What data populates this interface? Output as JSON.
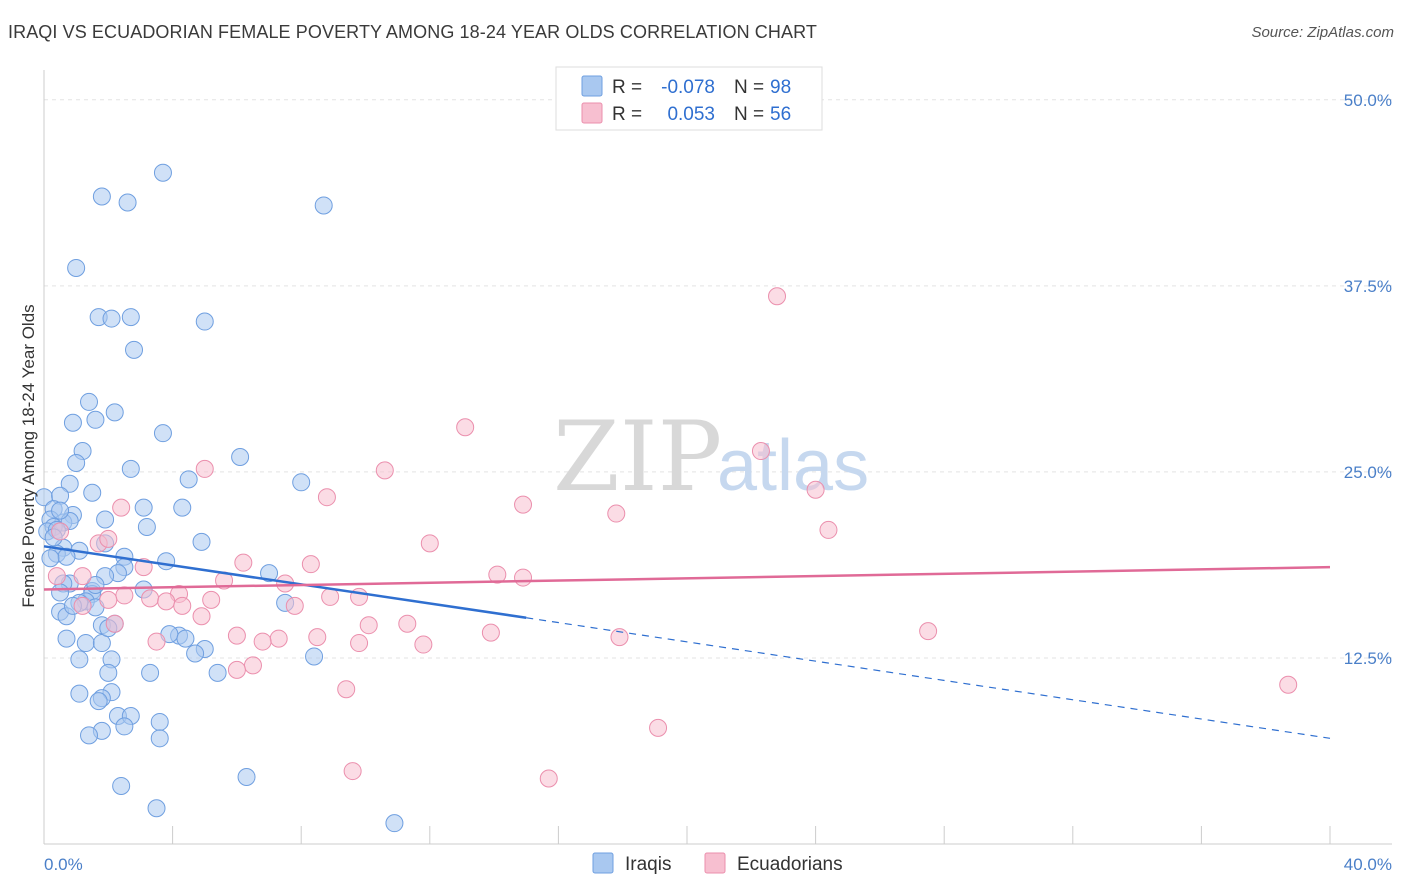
{
  "title": "IRAQI VS ECUADORIAN FEMALE POVERTY AMONG 18-24 YEAR OLDS CORRELATION CHART",
  "source": "Source: ZipAtlas.com",
  "watermark": {
    "zip": "ZIP",
    "atlas": "atlas"
  },
  "colors": {
    "iraqis_fill": "#a9c8f0",
    "iraqis_stroke": "#6f9fe0",
    "iraqis_line": "#2f6fd0",
    "ecuadorians_fill": "#f7bfd0",
    "ecuadorians_stroke": "#eb8fad",
    "ecuadorians_line": "#e06a97",
    "grid": "#e3e3e3",
    "tick_label": "#4a7fc8"
  },
  "legend": {
    "r_label": "R =",
    "n_label": "N =",
    "rows": [
      {
        "r": "-0.078",
        "n": "98"
      },
      {
        "r": "0.053",
        "n": "56"
      }
    ]
  },
  "chart_data": {
    "type": "scatter",
    "xlabel": "",
    "ylabel": "Female Poverty Among 18-24 Year Olds",
    "xlim": [
      0,
      40
    ],
    "ylim": [
      0,
      52
    ],
    "x_tick_labels": [
      "0.0%",
      "40.0%"
    ],
    "y_ticks": [
      12.5,
      25.0,
      37.5,
      50.0
    ],
    "y_tick_labels": [
      "12.5%",
      "25.0%",
      "37.5%",
      "50.0%"
    ],
    "grid": true,
    "legend_position": "top-center",
    "series": [
      {
        "name": "Iraqis",
        "points": [
          [
            3.7,
            45.1
          ],
          [
            1.8,
            43.5
          ],
          [
            2.6,
            43.1
          ],
          [
            8.7,
            42.9
          ],
          [
            1.0,
            38.7
          ],
          [
            1.7,
            35.4
          ],
          [
            2.1,
            35.3
          ],
          [
            2.7,
            35.4
          ],
          [
            5.0,
            35.1
          ],
          [
            2.8,
            33.2
          ],
          [
            1.4,
            29.7
          ],
          [
            2.2,
            29.0
          ],
          [
            1.6,
            28.5
          ],
          [
            0.9,
            28.3
          ],
          [
            3.7,
            27.6
          ],
          [
            1.2,
            26.4
          ],
          [
            6.1,
            26.0
          ],
          [
            1.0,
            25.6
          ],
          [
            2.7,
            25.2
          ],
          [
            4.5,
            24.5
          ],
          [
            8.0,
            24.3
          ],
          [
            0.8,
            24.2
          ],
          [
            1.5,
            23.6
          ],
          [
            0.0,
            23.3
          ],
          [
            0.5,
            23.4
          ],
          [
            0.3,
            22.5
          ],
          [
            3.1,
            22.6
          ],
          [
            4.3,
            22.6
          ],
          [
            0.9,
            22.1
          ],
          [
            1.9,
            21.8
          ],
          [
            0.2,
            21.8
          ],
          [
            0.6,
            21.6
          ],
          [
            0.8,
            21.7
          ],
          [
            0.3,
            21.3
          ],
          [
            0.1,
            21.0
          ],
          [
            0.4,
            21.1
          ],
          [
            4.9,
            20.3
          ],
          [
            1.9,
            20.2
          ],
          [
            0.6,
            19.9
          ],
          [
            1.1,
            19.7
          ],
          [
            0.4,
            19.5
          ],
          [
            0.7,
            19.3
          ],
          [
            0.2,
            19.2
          ],
          [
            2.5,
            19.3
          ],
          [
            3.8,
            19.0
          ],
          [
            2.5,
            18.6
          ],
          [
            2.3,
            18.2
          ],
          [
            7.0,
            18.2
          ],
          [
            0.8,
            17.5
          ],
          [
            0.6,
            17.5
          ],
          [
            1.5,
            17.0
          ],
          [
            3.1,
            17.1
          ],
          [
            1.5,
            16.8
          ],
          [
            0.5,
            16.9
          ],
          [
            1.3,
            16.3
          ],
          [
            1.1,
            16.2
          ],
          [
            7.5,
            16.2
          ],
          [
            1.6,
            15.9
          ],
          [
            0.5,
            15.6
          ],
          [
            0.7,
            15.3
          ],
          [
            2.2,
            14.8
          ],
          [
            1.8,
            14.7
          ],
          [
            4.2,
            14.0
          ],
          [
            0.7,
            13.8
          ],
          [
            3.9,
            14.1
          ],
          [
            1.3,
            13.5
          ],
          [
            5.0,
            13.1
          ],
          [
            1.8,
            13.5
          ],
          [
            4.7,
            12.8
          ],
          [
            8.4,
            12.6
          ],
          [
            1.1,
            12.4
          ],
          [
            2.1,
            12.4
          ],
          [
            2.0,
            11.5
          ],
          [
            3.3,
            11.5
          ],
          [
            5.4,
            11.5
          ],
          [
            1.1,
            10.1
          ],
          [
            2.1,
            10.2
          ],
          [
            1.8,
            9.8
          ],
          [
            1.7,
            9.6
          ],
          [
            2.3,
            8.6
          ],
          [
            2.7,
            8.6
          ],
          [
            3.6,
            8.2
          ],
          [
            2.5,
            7.9
          ],
          [
            1.8,
            7.6
          ],
          [
            1.4,
            7.3
          ],
          [
            3.6,
            7.1
          ],
          [
            6.3,
            4.5
          ],
          [
            2.4,
            3.9
          ],
          [
            3.5,
            2.4
          ],
          [
            10.9,
            1.4
          ],
          [
            0.5,
            22.4
          ],
          [
            1.9,
            18.0
          ],
          [
            3.2,
            21.3
          ],
          [
            0.9,
            16.0
          ],
          [
            2.0,
            14.5
          ],
          [
            4.4,
            13.8
          ],
          [
            0.3,
            20.6
          ],
          [
            1.6,
            17.4
          ]
        ]
      },
      {
        "name": "Ecuadorians",
        "points": [
          [
            22.8,
            36.8
          ],
          [
            13.1,
            28.0
          ],
          [
            22.3,
            26.4
          ],
          [
            5.0,
            25.2
          ],
          [
            10.6,
            25.1
          ],
          [
            8.8,
            23.3
          ],
          [
            24.0,
            23.8
          ],
          [
            14.9,
            22.8
          ],
          [
            17.8,
            22.2
          ],
          [
            2.4,
            22.6
          ],
          [
            24.4,
            21.1
          ],
          [
            0.5,
            21.0
          ],
          [
            12.0,
            20.2
          ],
          [
            1.7,
            20.2
          ],
          [
            2.0,
            20.5
          ],
          [
            6.2,
            18.9
          ],
          [
            8.3,
            18.8
          ],
          [
            3.1,
            18.6
          ],
          [
            14.1,
            18.1
          ],
          [
            14.9,
            17.9
          ],
          [
            1.2,
            18.0
          ],
          [
            0.4,
            18.0
          ],
          [
            5.6,
            17.7
          ],
          [
            7.5,
            17.5
          ],
          [
            2.5,
            16.7
          ],
          [
            4.2,
            16.8
          ],
          [
            5.2,
            16.4
          ],
          [
            9.8,
            16.6
          ],
          [
            8.9,
            16.6
          ],
          [
            3.3,
            16.5
          ],
          [
            2.0,
            16.4
          ],
          [
            3.8,
            16.3
          ],
          [
            4.3,
            16.0
          ],
          [
            7.8,
            16.0
          ],
          [
            1.2,
            16.0
          ],
          [
            4.9,
            15.3
          ],
          [
            10.1,
            14.7
          ],
          [
            11.3,
            14.8
          ],
          [
            13.9,
            14.2
          ],
          [
            17.9,
            13.9
          ],
          [
            6.0,
            14.0
          ],
          [
            7.3,
            13.8
          ],
          [
            8.5,
            13.9
          ],
          [
            6.8,
            13.6
          ],
          [
            3.5,
            13.6
          ],
          [
            9.8,
            13.5
          ],
          [
            11.8,
            13.4
          ],
          [
            27.5,
            14.3
          ],
          [
            6.5,
            12.0
          ],
          [
            6.0,
            11.7
          ],
          [
            9.4,
            10.4
          ],
          [
            38.7,
            10.7
          ],
          [
            19.1,
            7.8
          ],
          [
            9.6,
            4.9
          ],
          [
            15.7,
            4.4
          ],
          [
            2.2,
            14.8
          ]
        ]
      }
    ],
    "trend_lines": [
      {
        "series": "Iraqis",
        "x": [
          0,
          15,
          40
        ],
        "y": [
          20.0,
          15.2,
          7.1
        ],
        "solid_until": 15
      },
      {
        "series": "Ecuadorians",
        "x": [
          0,
          40
        ],
        "y": [
          17.1,
          18.6
        ]
      }
    ]
  }
}
